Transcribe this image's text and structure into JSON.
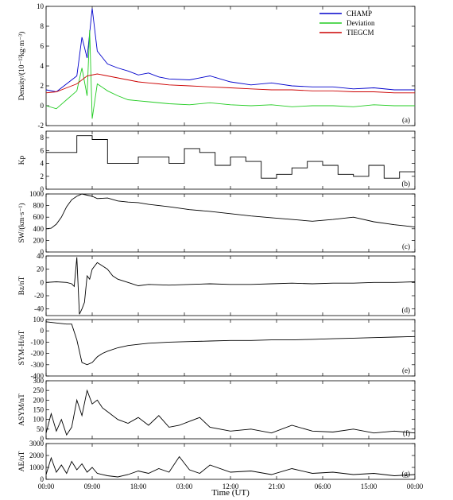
{
  "colors": {
    "axis": "#000000",
    "champ": "#0000cc",
    "deviation": "#22cc22",
    "tiegcm": "#cc0000"
  },
  "chart_data": [
    {
      "id": "a",
      "type": "line",
      "panel_label": "(a)",
      "ylabel": "Density/(10⁻¹²kg·m⁻³)",
      "ylim": [
        -2,
        10
      ],
      "yticks": [
        -2,
        0,
        2,
        4,
        6,
        8,
        10
      ],
      "legend": {
        "placement": "top-right",
        "entries": [
          "CHAMP",
          "Deviation",
          "TIEGCM"
        ]
      },
      "series": [
        {
          "name": "CHAMP",
          "color": "#0000cc",
          "x": [
            0,
            2,
            4,
            6,
            7,
            8,
            9,
            10,
            12,
            14,
            16,
            18,
            20,
            22,
            24,
            28,
            32,
            36,
            40,
            44,
            48,
            52,
            56,
            60,
            64,
            68,
            72
          ],
          "y": [
            1.6,
            1.4,
            2.2,
            3.0,
            6.9,
            4.8,
            9.8,
            5.5,
            4.2,
            3.8,
            3.5,
            3.1,
            3.3,
            2.9,
            2.7,
            2.6,
            3.0,
            2.4,
            2.1,
            2.3,
            2.0,
            1.9,
            1.9,
            1.7,
            1.8,
            1.6,
            1.6
          ]
        },
        {
          "name": "Deviation",
          "color": "#22cc22",
          "x": [
            0,
            2,
            4,
            6,
            7,
            8,
            8.5,
            9,
            10,
            12,
            14,
            16,
            18,
            20,
            24,
            28,
            32,
            36,
            40,
            44,
            48,
            52,
            56,
            60,
            64,
            68,
            72
          ],
          "y": [
            0.0,
            -0.3,
            0.6,
            1.5,
            3.8,
            1.0,
            7.6,
            -1.3,
            2.2,
            1.5,
            1.0,
            0.6,
            0.5,
            0.4,
            0.2,
            0.1,
            0.3,
            0.1,
            0.0,
            0.1,
            -0.1,
            0.0,
            0.0,
            -0.1,
            0.1,
            0.0,
            0.0
          ]
        },
        {
          "name": "TIEGCM",
          "color": "#cc0000",
          "x": [
            0,
            2,
            4,
            6,
            8,
            10,
            12,
            14,
            16,
            18,
            20,
            22,
            24,
            28,
            32,
            36,
            40,
            44,
            48,
            52,
            56,
            60,
            64,
            68,
            72
          ],
          "y": [
            1.3,
            1.4,
            1.8,
            2.2,
            3.0,
            3.2,
            3.0,
            2.8,
            2.6,
            2.4,
            2.3,
            2.2,
            2.1,
            2.0,
            1.9,
            1.8,
            1.7,
            1.6,
            1.6,
            1.5,
            1.5,
            1.4,
            1.4,
            1.3,
            1.3
          ]
        }
      ]
    },
    {
      "id": "b",
      "type": "line",
      "step": true,
      "panel_label": "(b)",
      "ylabel": "Kp",
      "ylim": [
        0,
        9
      ],
      "yticks": [
        0,
        2,
        4,
        6,
        8
      ],
      "series": [
        {
          "x": [
            0,
            3,
            6,
            9,
            12,
            15,
            18,
            21,
            24,
            27,
            30,
            33,
            36,
            39,
            42,
            45,
            48,
            51,
            54,
            57,
            60,
            63,
            66,
            69,
            72
          ],
          "y": [
            5.7,
            5.7,
            8.3,
            7.7,
            4.0,
            4.0,
            5.0,
            5.0,
            4.0,
            6.3,
            5.7,
            3.7,
            5.0,
            4.3,
            1.7,
            2.3,
            3.3,
            4.3,
            3.7,
            2.3,
            2.0,
            3.7,
            1.7,
            2.7,
            2.7
          ]
        }
      ]
    },
    {
      "id": "c",
      "type": "line",
      "panel_label": "(c)",
      "ylabel": "SW/(km·s⁻¹)",
      "ylim": [
        0,
        1000
      ],
      "yticks": [
        0,
        200,
        400,
        600,
        800,
        1000
      ],
      "series": [
        {
          "x": [
            0,
            1,
            2,
            3,
            4,
            5,
            6,
            7,
            8,
            9,
            10,
            12,
            14,
            16,
            18,
            20,
            24,
            28,
            32,
            36,
            40,
            44,
            48,
            52,
            56,
            60,
            64,
            68,
            70,
            72
          ],
          "y": [
            400,
            410,
            480,
            600,
            780,
            900,
            960,
            1000,
            980,
            960,
            920,
            930,
            880,
            860,
            850,
            820,
            780,
            730,
            700,
            660,
            620,
            590,
            560,
            530,
            560,
            600,
            520,
            470,
            450,
            430
          ]
        }
      ]
    },
    {
      "id": "d",
      "type": "line",
      "panel_label": "(d)",
      "ylabel": "Bz/nT",
      "ylim": [
        -50,
        40
      ],
      "yticks": [
        -40,
        -20,
        0,
        20,
        40
      ],
      "series": [
        {
          "x": [
            0,
            2,
            4,
            5,
            5.5,
            6,
            6.5,
            7,
            7.5,
            8,
            8.5,
            9,
            10,
            11,
            12,
            13,
            14,
            16,
            18,
            20,
            24,
            28,
            32,
            36,
            40,
            44,
            48,
            52,
            56,
            60,
            64,
            68,
            72
          ],
          "y": [
            0,
            1,
            0,
            -2,
            -6,
            38,
            -48,
            -40,
            -30,
            10,
            5,
            20,
            30,
            25,
            20,
            10,
            5,
            0,
            -5,
            -3,
            -4,
            -3,
            -2,
            -3,
            -3,
            -2,
            -1,
            -2,
            -1,
            -1,
            0,
            0,
            1
          ]
        }
      ]
    },
    {
      "id": "e",
      "type": "line",
      "panel_label": "(e)",
      "ylabel": "SYM-H/nT",
      "ylim": [
        -400,
        100
      ],
      "yticks": [
        -400,
        -300,
        -200,
        -100,
        0,
        100
      ],
      "series": [
        {
          "x": [
            0,
            2,
            4,
            5,
            6,
            7,
            8,
            9,
            10,
            11,
            12,
            14,
            16,
            18,
            20,
            24,
            28,
            32,
            36,
            40,
            44,
            48,
            52,
            56,
            60,
            64,
            68,
            72
          ],
          "y": [
            80,
            70,
            60,
            60,
            -80,
            -280,
            -300,
            -280,
            -230,
            -200,
            -180,
            -150,
            -130,
            -120,
            -110,
            -100,
            -95,
            -90,
            -85,
            -85,
            -80,
            -80,
            -75,
            -70,
            -65,
            -60,
            -55,
            -50
          ]
        }
      ]
    },
    {
      "id": "f",
      "type": "line",
      "panel_label": "(f)",
      "ylabel": "ASYM/nT",
      "ylim": [
        0,
        300
      ],
      "yticks": [
        0,
        50,
        100,
        150,
        200,
        250,
        300
      ],
      "series": [
        {
          "x": [
            0,
            1,
            2,
            3,
            4,
            5,
            6,
            7,
            8,
            9,
            10,
            11,
            12,
            14,
            16,
            18,
            20,
            22,
            24,
            26,
            28,
            30,
            32,
            36,
            40,
            44,
            48,
            52,
            56,
            60,
            64,
            68,
            72
          ],
          "y": [
            30,
            130,
            40,
            100,
            20,
            60,
            200,
            120,
            250,
            180,
            200,
            160,
            140,
            100,
            80,
            110,
            70,
            120,
            60,
            70,
            90,
            110,
            60,
            40,
            50,
            30,
            70,
            40,
            35,
            50,
            30,
            40,
            30
          ]
        }
      ]
    },
    {
      "id": "g",
      "type": "line",
      "panel_label": "(g)",
      "ylabel": "AE/nT",
      "ylim": [
        0,
        3000
      ],
      "yticks": [
        0,
        1000,
        2000,
        3000
      ],
      "series": [
        {
          "x": [
            0,
            1,
            2,
            3,
            4,
            5,
            6,
            7,
            8,
            9,
            10,
            12,
            14,
            16,
            18,
            20,
            22,
            24,
            26,
            28,
            30,
            32,
            36,
            40,
            44,
            48,
            52,
            56,
            60,
            64,
            68,
            72
          ],
          "y": [
            400,
            1800,
            600,
            1200,
            500,
            1500,
            800,
            1300,
            600,
            1000,
            500,
            300,
            200,
            400,
            700,
            500,
            900,
            600,
            1900,
            800,
            500,
            1200,
            600,
            700,
            400,
            900,
            500,
            600,
            400,
            500,
            300,
            400
          ]
        }
      ]
    }
  ],
  "x_axis": {
    "label": "Time (UT)",
    "xlim": [
      0,
      72
    ],
    "tick_positions": [
      0,
      9,
      18,
      27,
      36,
      45,
      54,
      63,
      72
    ],
    "tick_labels": [
      "00:00",
      "09:00",
      "18:00",
      "03:00",
      "12:00",
      "21:00",
      "06:00",
      "15:00",
      "00:00"
    ]
  }
}
